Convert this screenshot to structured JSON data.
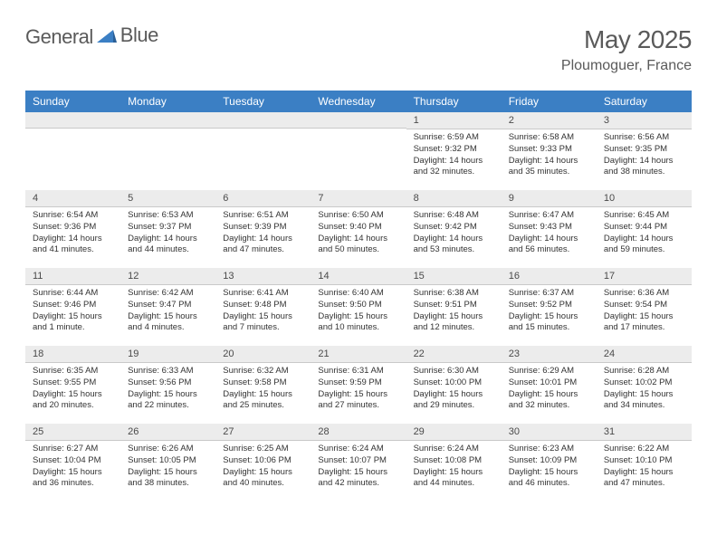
{
  "brand": {
    "word1": "General",
    "word2": "Blue"
  },
  "title": "May 2025",
  "location": "Ploumoguer, France",
  "colors": {
    "header_bg": "#3b7fc4",
    "header_text": "#ffffff",
    "daynum_bg": "#ececec",
    "body_text": "#333333",
    "page_bg": "#ffffff",
    "title_color": "#5a5a5a"
  },
  "typography": {
    "title_fontsize": 28,
    "location_fontsize": 16,
    "dayheader_fontsize": 12,
    "daynum_fontsize": 11,
    "body_fontsize": 9.5
  },
  "day_names": [
    "Sunday",
    "Monday",
    "Tuesday",
    "Wednesday",
    "Thursday",
    "Friday",
    "Saturday"
  ],
  "weeks": [
    [
      null,
      null,
      null,
      null,
      {
        "n": "1",
        "sr": "Sunrise: 6:59 AM",
        "ss": "Sunset: 9:32 PM",
        "dl1": "Daylight: 14 hours",
        "dl2": "and 32 minutes."
      },
      {
        "n": "2",
        "sr": "Sunrise: 6:58 AM",
        "ss": "Sunset: 9:33 PM",
        "dl1": "Daylight: 14 hours",
        "dl2": "and 35 minutes."
      },
      {
        "n": "3",
        "sr": "Sunrise: 6:56 AM",
        "ss": "Sunset: 9:35 PM",
        "dl1": "Daylight: 14 hours",
        "dl2": "and 38 minutes."
      }
    ],
    [
      {
        "n": "4",
        "sr": "Sunrise: 6:54 AM",
        "ss": "Sunset: 9:36 PM",
        "dl1": "Daylight: 14 hours",
        "dl2": "and 41 minutes."
      },
      {
        "n": "5",
        "sr": "Sunrise: 6:53 AM",
        "ss": "Sunset: 9:37 PM",
        "dl1": "Daylight: 14 hours",
        "dl2": "and 44 minutes."
      },
      {
        "n": "6",
        "sr": "Sunrise: 6:51 AM",
        "ss": "Sunset: 9:39 PM",
        "dl1": "Daylight: 14 hours",
        "dl2": "and 47 minutes."
      },
      {
        "n": "7",
        "sr": "Sunrise: 6:50 AM",
        "ss": "Sunset: 9:40 PM",
        "dl1": "Daylight: 14 hours",
        "dl2": "and 50 minutes."
      },
      {
        "n": "8",
        "sr": "Sunrise: 6:48 AM",
        "ss": "Sunset: 9:42 PM",
        "dl1": "Daylight: 14 hours",
        "dl2": "and 53 minutes."
      },
      {
        "n": "9",
        "sr": "Sunrise: 6:47 AM",
        "ss": "Sunset: 9:43 PM",
        "dl1": "Daylight: 14 hours",
        "dl2": "and 56 minutes."
      },
      {
        "n": "10",
        "sr": "Sunrise: 6:45 AM",
        "ss": "Sunset: 9:44 PM",
        "dl1": "Daylight: 14 hours",
        "dl2": "and 59 minutes."
      }
    ],
    [
      {
        "n": "11",
        "sr": "Sunrise: 6:44 AM",
        "ss": "Sunset: 9:46 PM",
        "dl1": "Daylight: 15 hours",
        "dl2": "and 1 minute."
      },
      {
        "n": "12",
        "sr": "Sunrise: 6:42 AM",
        "ss": "Sunset: 9:47 PM",
        "dl1": "Daylight: 15 hours",
        "dl2": "and 4 minutes."
      },
      {
        "n": "13",
        "sr": "Sunrise: 6:41 AM",
        "ss": "Sunset: 9:48 PM",
        "dl1": "Daylight: 15 hours",
        "dl2": "and 7 minutes."
      },
      {
        "n": "14",
        "sr": "Sunrise: 6:40 AM",
        "ss": "Sunset: 9:50 PM",
        "dl1": "Daylight: 15 hours",
        "dl2": "and 10 minutes."
      },
      {
        "n": "15",
        "sr": "Sunrise: 6:38 AM",
        "ss": "Sunset: 9:51 PM",
        "dl1": "Daylight: 15 hours",
        "dl2": "and 12 minutes."
      },
      {
        "n": "16",
        "sr": "Sunrise: 6:37 AM",
        "ss": "Sunset: 9:52 PM",
        "dl1": "Daylight: 15 hours",
        "dl2": "and 15 minutes."
      },
      {
        "n": "17",
        "sr": "Sunrise: 6:36 AM",
        "ss": "Sunset: 9:54 PM",
        "dl1": "Daylight: 15 hours",
        "dl2": "and 17 minutes."
      }
    ],
    [
      {
        "n": "18",
        "sr": "Sunrise: 6:35 AM",
        "ss": "Sunset: 9:55 PM",
        "dl1": "Daylight: 15 hours",
        "dl2": "and 20 minutes."
      },
      {
        "n": "19",
        "sr": "Sunrise: 6:33 AM",
        "ss": "Sunset: 9:56 PM",
        "dl1": "Daylight: 15 hours",
        "dl2": "and 22 minutes."
      },
      {
        "n": "20",
        "sr": "Sunrise: 6:32 AM",
        "ss": "Sunset: 9:58 PM",
        "dl1": "Daylight: 15 hours",
        "dl2": "and 25 minutes."
      },
      {
        "n": "21",
        "sr": "Sunrise: 6:31 AM",
        "ss": "Sunset: 9:59 PM",
        "dl1": "Daylight: 15 hours",
        "dl2": "and 27 minutes."
      },
      {
        "n": "22",
        "sr": "Sunrise: 6:30 AM",
        "ss": "Sunset: 10:00 PM",
        "dl1": "Daylight: 15 hours",
        "dl2": "and 29 minutes."
      },
      {
        "n": "23",
        "sr": "Sunrise: 6:29 AM",
        "ss": "Sunset: 10:01 PM",
        "dl1": "Daylight: 15 hours",
        "dl2": "and 32 minutes."
      },
      {
        "n": "24",
        "sr": "Sunrise: 6:28 AM",
        "ss": "Sunset: 10:02 PM",
        "dl1": "Daylight: 15 hours",
        "dl2": "and 34 minutes."
      }
    ],
    [
      {
        "n": "25",
        "sr": "Sunrise: 6:27 AM",
        "ss": "Sunset: 10:04 PM",
        "dl1": "Daylight: 15 hours",
        "dl2": "and 36 minutes."
      },
      {
        "n": "26",
        "sr": "Sunrise: 6:26 AM",
        "ss": "Sunset: 10:05 PM",
        "dl1": "Daylight: 15 hours",
        "dl2": "and 38 minutes."
      },
      {
        "n": "27",
        "sr": "Sunrise: 6:25 AM",
        "ss": "Sunset: 10:06 PM",
        "dl1": "Daylight: 15 hours",
        "dl2": "and 40 minutes."
      },
      {
        "n": "28",
        "sr": "Sunrise: 6:24 AM",
        "ss": "Sunset: 10:07 PM",
        "dl1": "Daylight: 15 hours",
        "dl2": "and 42 minutes."
      },
      {
        "n": "29",
        "sr": "Sunrise: 6:24 AM",
        "ss": "Sunset: 10:08 PM",
        "dl1": "Daylight: 15 hours",
        "dl2": "and 44 minutes."
      },
      {
        "n": "30",
        "sr": "Sunrise: 6:23 AM",
        "ss": "Sunset: 10:09 PM",
        "dl1": "Daylight: 15 hours",
        "dl2": "and 46 minutes."
      },
      {
        "n": "31",
        "sr": "Sunrise: 6:22 AM",
        "ss": "Sunset: 10:10 PM",
        "dl1": "Daylight: 15 hours",
        "dl2": "and 47 minutes."
      }
    ]
  ]
}
